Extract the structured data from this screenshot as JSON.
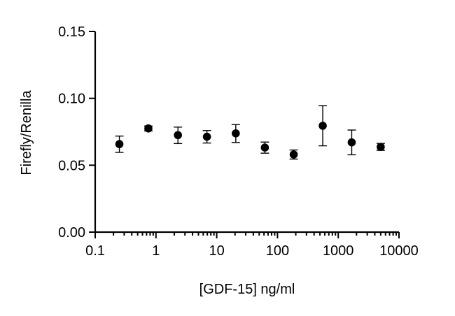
{
  "chart_data": {
    "type": "scatter",
    "title": "",
    "xlabel": "[GDF-15] ng/ml",
    "ylabel": "Firefly/Renilla",
    "xscale": "log10",
    "xlim": [
      0.1,
      10000
    ],
    "ylim": [
      0.0,
      0.15
    ],
    "xticks": [
      0.1,
      1,
      10,
      100,
      1000,
      10000
    ],
    "xtick_labels": [
      "0.1",
      "1",
      "10",
      "100",
      "1000",
      "10000"
    ],
    "yticks": [
      0.0,
      0.05,
      0.1,
      0.15
    ],
    "ytick_labels": [
      "0.00",
      "0.05",
      "0.10",
      "0.15"
    ],
    "grid": false,
    "legend": "none",
    "series": [
      {
        "name": "Firefly/Renilla",
        "x": [
          0.25,
          0.75,
          2.3,
          6.9,
          20.6,
          62,
          185,
          556,
          1667,
          5000
        ],
        "y": [
          0.0658,
          0.0775,
          0.0725,
          0.0713,
          0.0738,
          0.0632,
          0.058,
          0.0795,
          0.0671,
          0.0637
        ],
        "err_upper": [
          0.0718,
          0.0793,
          0.0785,
          0.0759,
          0.0804,
          0.0673,
          0.0614,
          0.0945,
          0.0763,
          0.0663
        ],
        "err_lower": [
          0.0596,
          0.0757,
          0.0662,
          0.0666,
          0.067,
          0.059,
          0.0546,
          0.0645,
          0.0578,
          0.0611
        ]
      }
    ],
    "colors": {
      "marker": "#000000",
      "axis": "#000000",
      "background": "#ffffff"
    }
  }
}
